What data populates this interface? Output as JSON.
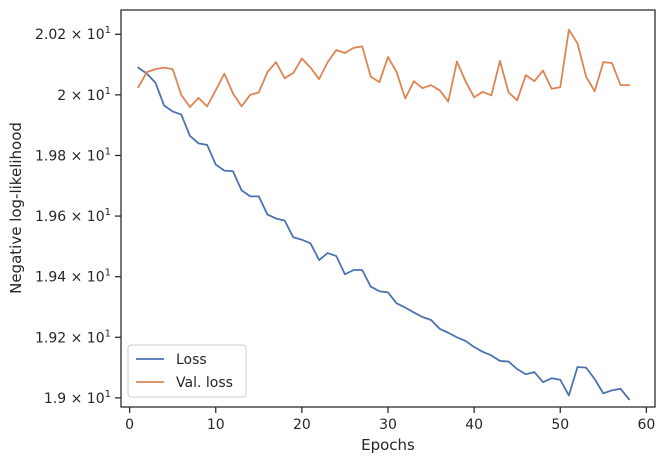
{
  "chart_data": {
    "type": "line",
    "title": "",
    "xlabel": "Epochs",
    "ylabel": "Negative log-likelihood",
    "xlim": [
      -1,
      61
    ],
    "ylim": [
      18.97,
      20.28
    ],
    "x_ticks": [
      0,
      10,
      20,
      30,
      40,
      50,
      60
    ],
    "x_tick_labels": [
      "0",
      "10",
      "20",
      "30",
      "40",
      "50",
      "60"
    ],
    "y_ticks": [
      19.0,
      19.2,
      19.4,
      19.6,
      19.8,
      20.0,
      20.2
    ],
    "y_tick_labels": [
      {
        "mantissa": "1.9 × 10",
        "exp": "1"
      },
      {
        "mantissa": "1.92 × 10",
        "exp": "1"
      },
      {
        "mantissa": "1.94 × 10",
        "exp": "1"
      },
      {
        "mantissa": "1.96 × 10",
        "exp": "1"
      },
      {
        "mantissa": "1.98 × 10",
        "exp": "1"
      },
      {
        "mantissa": "2 × 10",
        "exp": "1"
      },
      {
        "mantissa": "2.02 × 10",
        "exp": "1"
      }
    ],
    "grid": false,
    "legend": "lower-left",
    "x": [
      1,
      2,
      3,
      4,
      5,
      6,
      7,
      8,
      9,
      10,
      11,
      12,
      13,
      14,
      15,
      16,
      17,
      18,
      19,
      20,
      21,
      22,
      23,
      24,
      25,
      26,
      27,
      28,
      29,
      30,
      31,
      32,
      33,
      34,
      35,
      36,
      37,
      38,
      39,
      40,
      41,
      42,
      43,
      44,
      45,
      46,
      47,
      48,
      49,
      50,
      51,
      52,
      53,
      54,
      55,
      56,
      57,
      58
    ],
    "series": [
      {
        "name": "Loss",
        "color": "#4c72b0",
        "values": [
          20.09,
          20.07,
          20.04,
          19.965,
          19.945,
          19.935,
          19.865,
          19.84,
          19.835,
          19.77,
          19.75,
          19.748,
          19.685,
          19.665,
          19.665,
          19.605,
          19.592,
          19.585,
          19.53,
          19.522,
          19.51,
          19.455,
          19.478,
          19.468,
          19.408,
          19.422,
          19.422,
          19.367,
          19.352,
          19.348,
          19.312,
          19.298,
          19.282,
          19.267,
          19.257,
          19.228,
          19.215,
          19.2,
          19.188,
          19.168,
          19.152,
          19.14,
          19.122,
          19.12,
          19.095,
          19.078,
          19.085,
          19.052,
          19.065,
          19.06,
          19.008,
          19.102,
          19.1,
          19.062,
          19.015,
          19.025,
          19.03,
          18.995
        ]
      },
      {
        "name": "Val. loss",
        "color": "#dd8452",
        "values": [
          20.025,
          20.075,
          20.085,
          20.09,
          20.085,
          20.0,
          19.96,
          19.99,
          19.962,
          20.015,
          20.07,
          20.005,
          19.962,
          20.0,
          20.008,
          20.075,
          20.108,
          20.055,
          20.072,
          20.12,
          20.09,
          20.052,
          20.108,
          20.148,
          20.138,
          20.155,
          20.16,
          20.06,
          20.042,
          20.125,
          20.075,
          19.988,
          20.045,
          20.022,
          20.032,
          20.015,
          19.978,
          20.11,
          20.045,
          19.992,
          20.01,
          19.998,
          20.112,
          20.008,
          19.982,
          20.065,
          20.045,
          20.08,
          20.02,
          20.025,
          20.215,
          20.17,
          20.06,
          20.012,
          20.108,
          20.105,
          20.032,
          20.032
        ]
      }
    ]
  }
}
